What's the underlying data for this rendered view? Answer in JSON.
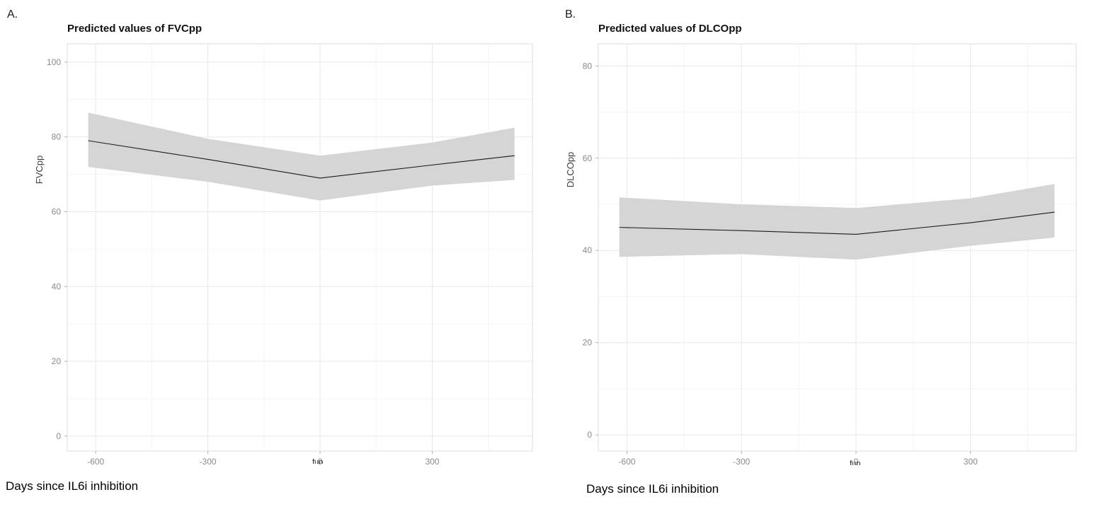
{
  "page": {
    "background": "#ffffff"
  },
  "panels": [
    {
      "panel_label": "A.",
      "title": "Predicted values of FVCpp",
      "y_axis_title": "FVCpp",
      "caption": "Days since IL6i inhibition",
      "axis_fragment": "fup"
    },
    {
      "panel_label": "B.",
      "title": "Predicted values of DLCOpp",
      "y_axis_title": "DLCOpp",
      "caption": "Days since IL6i inhibition",
      "axis_fragment": "fup"
    }
  ],
  "chart_data": [
    {
      "type": "area",
      "title": "Predicted values of FVCpp",
      "xlabel": "Days since IL6i inhibition",
      "ylabel": "FVCpp",
      "x": [
        -620,
        -300,
        0,
        300,
        520
      ],
      "series": [
        {
          "name": "predicted",
          "values": [
            79,
            74,
            69,
            72.5,
            75
          ]
        },
        {
          "name": "ci_lower",
          "values": [
            72,
            68,
            63,
            67,
            68.5
          ]
        },
        {
          "name": "ci_upper",
          "values": [
            86.5,
            79.5,
            75,
            78.5,
            82.5
          ]
        }
      ],
      "xlim": [
        -676,
        568
      ],
      "ylim": [
        -4,
        104.9
      ],
      "x_ticks": [
        -600,
        -300,
        0,
        300
      ],
      "y_ticks": [
        0,
        20,
        40,
        60,
        80,
        100
      ],
      "x_minor": [
        -450,
        -150,
        150,
        450
      ],
      "y_minor": [
        10,
        30,
        50,
        70,
        90
      ],
      "grid": true,
      "legend": "none",
      "colors": {
        "band": "#d5d5d5",
        "line": "#1a1a1a",
        "grid_major": "#e9e9e9",
        "grid_minor": "#f4f4f4",
        "border": "#dedede",
        "tick_label": "#8a8a8a",
        "tick_mark": "#b3b3b3",
        "axis_title": "#3d3d3d"
      }
    },
    {
      "type": "area",
      "title": "Predicted values of DLCOpp",
      "xlabel": "Days since IL6i inhibition",
      "ylabel": "DLCOpp",
      "x": [
        -620,
        -300,
        0,
        300,
        520
      ],
      "series": [
        {
          "name": "predicted",
          "values": [
            45,
            44.3,
            43.5,
            46,
            48.3
          ]
        },
        {
          "name": "ci_lower",
          "values": [
            38.6,
            39.2,
            38,
            41,
            42.8
          ]
        },
        {
          "name": "ci_upper",
          "values": [
            51.5,
            50,
            49.2,
            51.3,
            54.4
          ]
        }
      ],
      "xlim": [
        -675,
        577
      ],
      "ylim": [
        -3.5,
        84.8
      ],
      "x_ticks": [
        -600,
        -300,
        0,
        300
      ],
      "y_ticks": [
        0,
        20,
        40,
        60,
        80
      ],
      "x_minor": [
        -450,
        -150,
        150,
        450
      ],
      "y_minor": [
        10,
        30,
        50,
        70
      ],
      "grid": true,
      "legend": "none",
      "colors": {
        "band": "#d5d5d5",
        "line": "#1a1a1a",
        "grid_major": "#e9e9e9",
        "grid_minor": "#f4f4f4",
        "border": "#dedede",
        "tick_label": "#8a8a8a",
        "tick_mark": "#b3b3b3",
        "axis_title": "#3d3d3d"
      }
    }
  ]
}
